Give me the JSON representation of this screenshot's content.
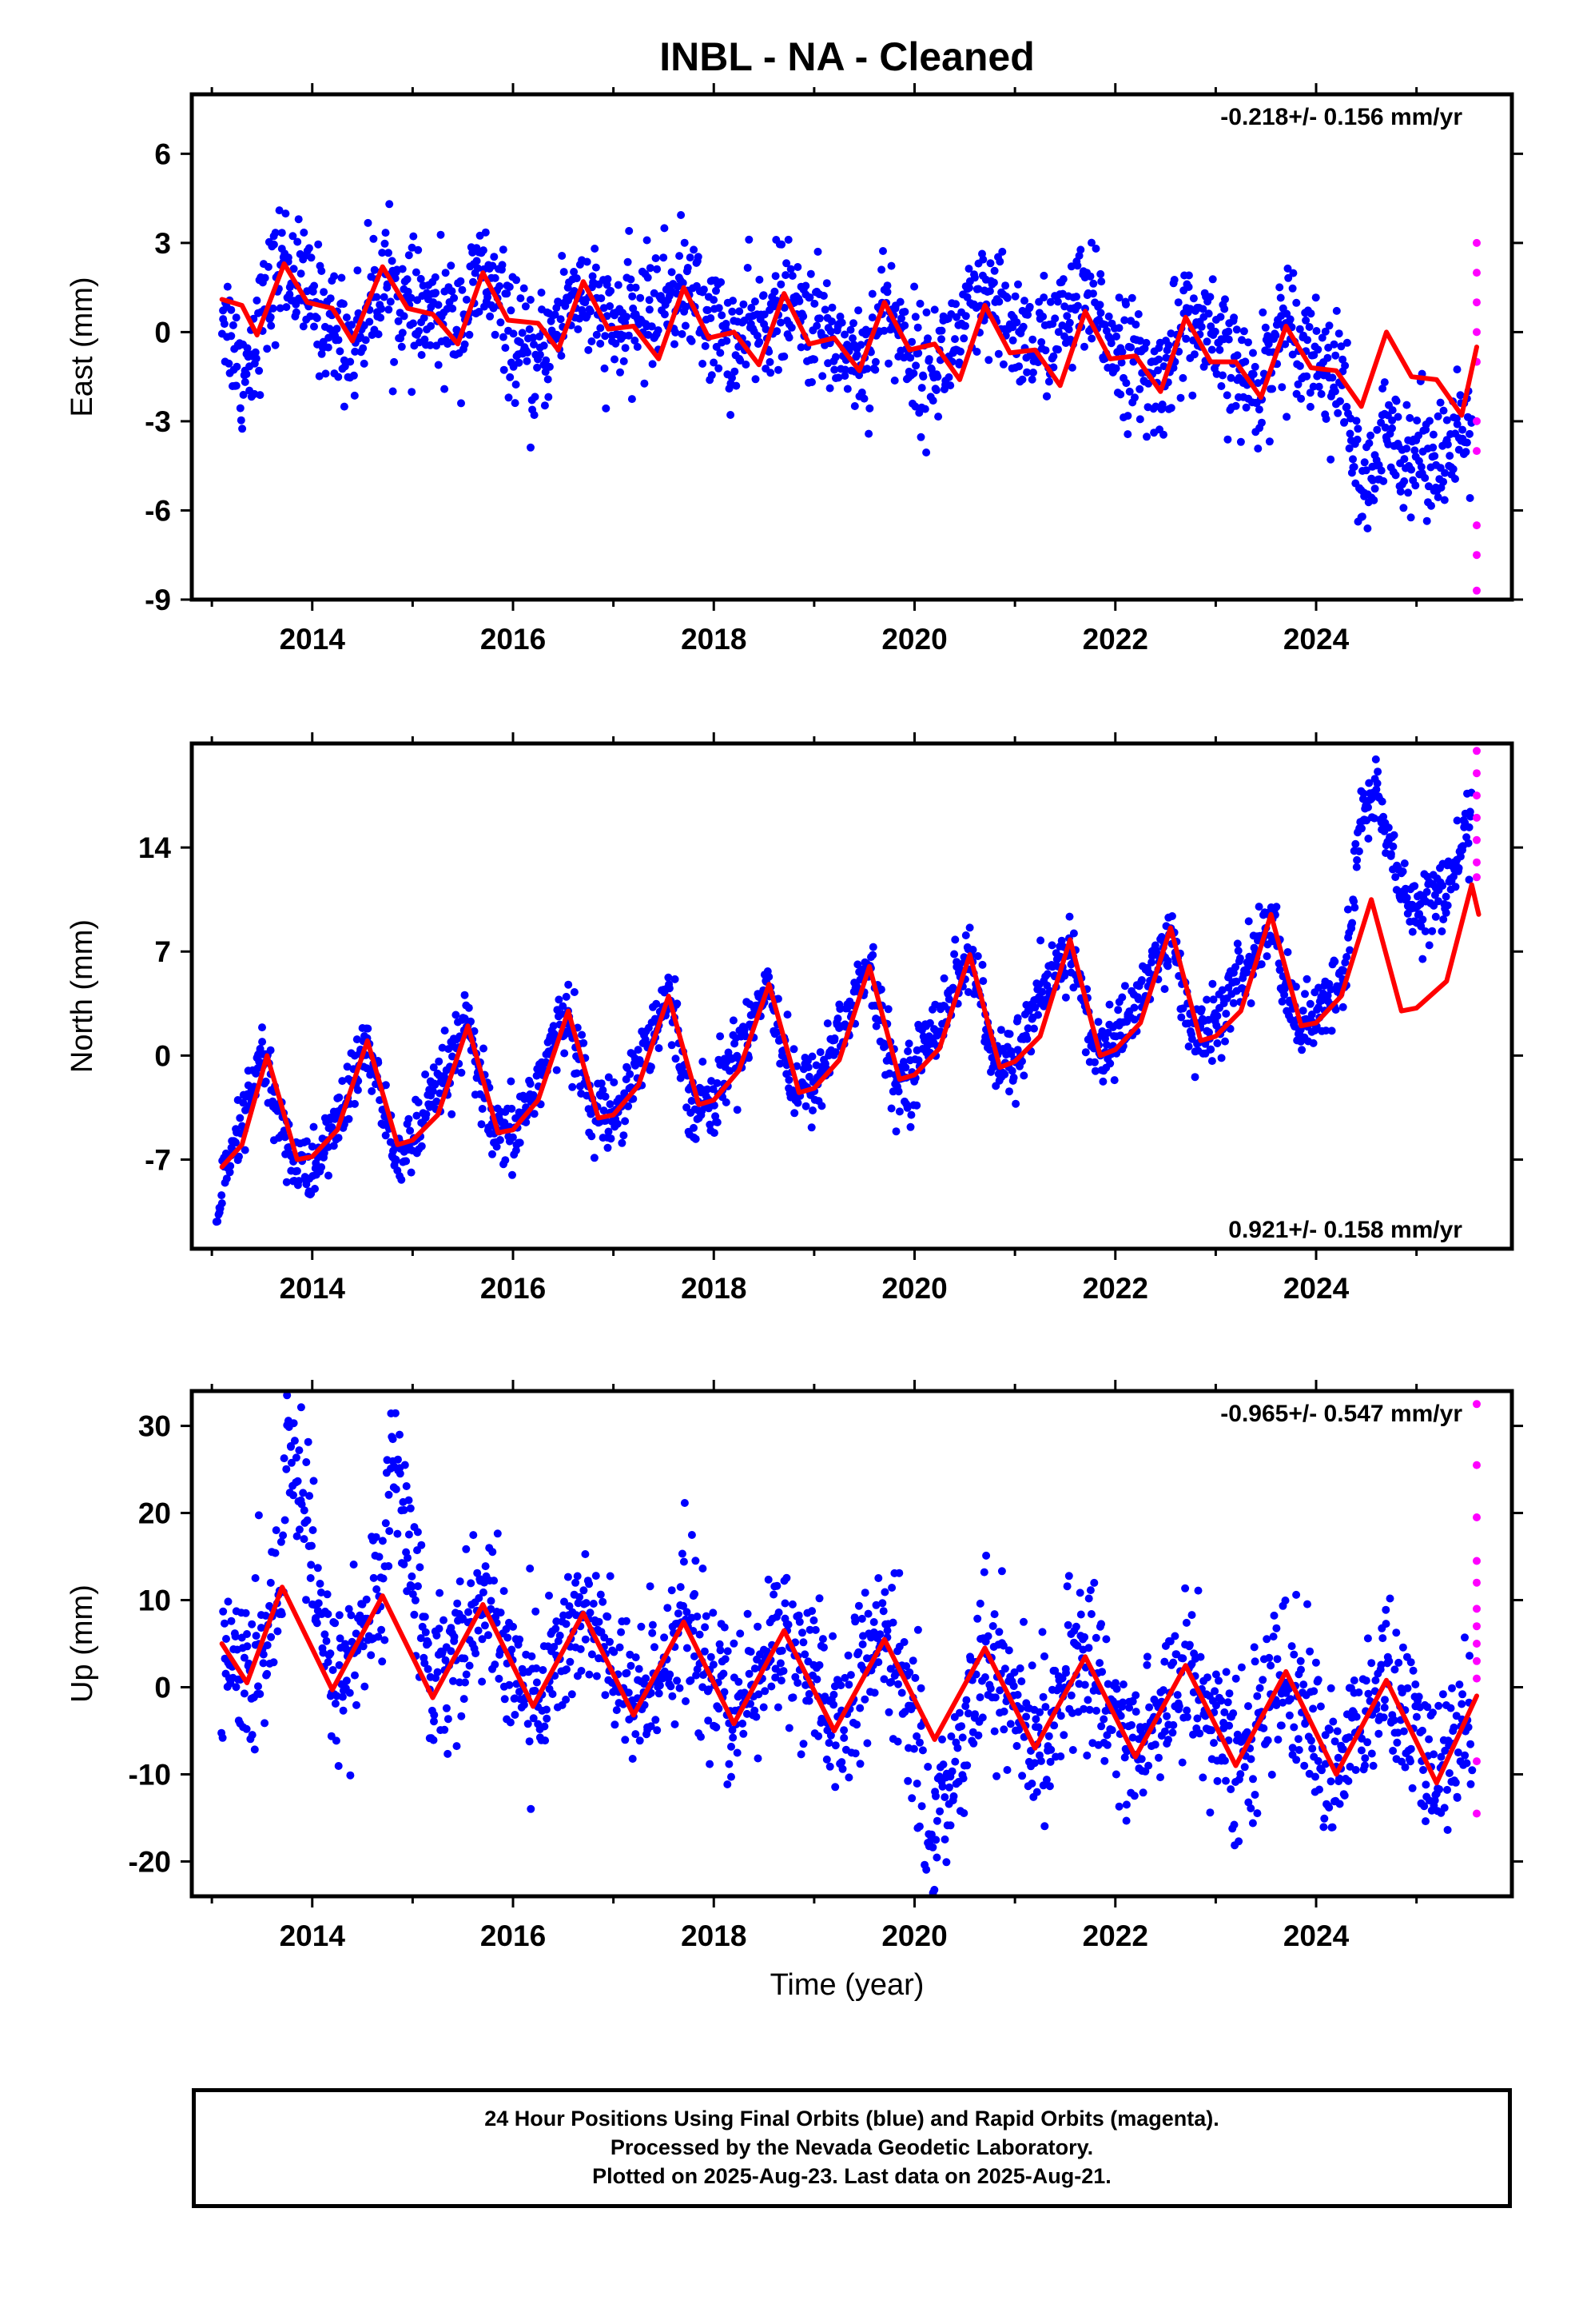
{
  "title": "INBL  - NA - Cleaned",
  "xlabel": "Time (year)",
  "footer": {
    "line1": "24 Hour Positions Using Final Orbits (blue) and Rapid Orbits (magenta).",
    "line2": "Processed by the Nevada Geodetic Laboratory.",
    "line3": "Plotted on 2025-Aug-23. Last data on 2025-Aug-21."
  },
  "colors": {
    "final_orbits": "#0000ff",
    "rapid_orbits": "#ff00ff",
    "model_fit": "#ff0000",
    "axes": "#000000"
  },
  "chart_data": [
    {
      "type": "scatter",
      "ylabel": "East (mm)",
      "velocity": "-0.218+/- 0.156 mm/yr",
      "velocity_position": "top-right",
      "xlim": [
        2012.8,
        2025.95
      ],
      "ylim": [
        -9,
        8
      ],
      "xticks": [
        2014,
        2016,
        2018,
        2020,
        2022,
        2024
      ],
      "yticks": [
        -9,
        -6,
        -3,
        0,
        3,
        6
      ],
      "series": [
        {
          "name": "Final Orbits (blue)",
          "style": "points",
          "key_points": [
            [
              2013.1,
              1.0
            ],
            [
              2013.3,
              -1.5
            ],
            [
              2013.7,
              2.5
            ],
            [
              2014.0,
              1.0
            ],
            [
              2014.4,
              -0.5
            ],
            [
              2014.7,
              2.0
            ],
            [
              2015.0,
              0.5
            ],
            [
              2015.5,
              0.5
            ],
            [
              2015.7,
              2.0
            ],
            [
              2016.2,
              -1.5
            ],
            [
              2016.6,
              1.5
            ],
            [
              2017.0,
              0.0
            ],
            [
              2017.7,
              1.5
            ],
            [
              2018.2,
              -0.5
            ],
            [
              2018.7,
              1.0
            ],
            [
              2019.5,
              -1.0
            ],
            [
              2019.7,
              1.0
            ],
            [
              2020.1,
              -1.5
            ],
            [
              2020.7,
              1.0
            ],
            [
              2021.2,
              -0.5
            ],
            [
              2021.7,
              1.0
            ],
            [
              2022.4,
              -2.0
            ],
            [
              2022.7,
              0.5
            ],
            [
              2023.4,
              -2.0
            ],
            [
              2023.7,
              0.5
            ],
            [
              2024.3,
              -2.0
            ],
            [
              2024.45,
              -6.0
            ],
            [
              2024.7,
              -3.5
            ],
            [
              2025.0,
              -4.0
            ],
            [
              2025.4,
              -4.0
            ],
            [
              2025.55,
              -3.0
            ]
          ]
        },
        {
          "name": "Rapid Orbits (magenta)",
          "style": "points",
          "key_points": [
            [
              2025.6,
              3.0
            ],
            [
              2025.6,
              2.0
            ],
            [
              2025.6,
              1.0
            ],
            [
              2025.6,
              0.0
            ],
            [
              2025.6,
              -1.0
            ],
            [
              2025.6,
              -3.0
            ],
            [
              2025.6,
              -4.0
            ],
            [
              2025.6,
              -6.5
            ],
            [
              2025.6,
              -7.5
            ],
            [
              2025.6,
              -8.7
            ]
          ]
        },
        {
          "name": "Model fit",
          "style": "line",
          "x": [
            2013.1,
            2013.3,
            2013.45,
            2013.72,
            2013.95,
            2014.2,
            2014.4,
            2014.7,
            2014.95,
            2015.2,
            2015.45,
            2015.7,
            2015.95,
            2016.25,
            2016.45,
            2016.7,
            2016.95,
            2017.2,
            2017.45,
            2017.7,
            2017.95,
            2018.2,
            2018.45,
            2018.7,
            2018.95,
            2019.2,
            2019.45,
            2019.7,
            2019.95,
            2020.2,
            2020.45,
            2020.7,
            2020.95,
            2021.2,
            2021.45,
            2021.7,
            2021.95,
            2022.2,
            2022.45,
            2022.7,
            2022.95,
            2023.2,
            2023.45,
            2023.7,
            2023.95,
            2024.2,
            2024.45,
            2024.7,
            2024.95,
            2025.2,
            2025.45,
            2025.6
          ],
          "y": [
            1.1,
            0.9,
            -0.1,
            2.3,
            1.0,
            0.8,
            -0.3,
            2.2,
            0.8,
            0.6,
            -0.4,
            2.0,
            0.4,
            0.3,
            -0.6,
            1.7,
            0.1,
            0.2,
            -0.9,
            1.5,
            -0.2,
            0.0,
            -1.1,
            1.3,
            -0.4,
            -0.2,
            -1.3,
            1.0,
            -0.6,
            -0.4,
            -1.6,
            0.9,
            -0.7,
            -0.6,
            -1.8,
            0.7,
            -0.9,
            -0.8,
            -2.0,
            0.5,
            -1.0,
            -1.0,
            -2.2,
            0.2,
            -1.2,
            -1.3,
            -2.5,
            0.0,
            -1.5,
            -1.6,
            -2.8,
            -0.5
          ]
        }
      ]
    },
    {
      "type": "scatter",
      "ylabel": "North (mm)",
      "velocity": "0.921+/- 0.158 mm/yr",
      "velocity_position": "bottom-right",
      "xlim": [
        2012.8,
        2025.95
      ],
      "ylim": [
        -13,
        21
      ],
      "xticks": [
        2014,
        2016,
        2018,
        2020,
        2022,
        2024
      ],
      "yticks": [
        -7,
        0,
        7,
        14
      ],
      "series": [
        {
          "name": "Final Orbits (blue)",
          "style": "points",
          "key_points": [
            [
              2013.05,
              -10.5
            ],
            [
              2013.2,
              -7.0
            ],
            [
              2013.5,
              0.0
            ],
            [
              2013.8,
              -7.0
            ],
            [
              2014.0,
              -8.0
            ],
            [
              2014.4,
              -2.0
            ],
            [
              2014.55,
              1.0
            ],
            [
              2014.8,
              -6.5
            ],
            [
              2015.0,
              -6.0
            ],
            [
              2015.55,
              2.0
            ],
            [
              2015.8,
              -5.5
            ],
            [
              2016.0,
              -5.5
            ],
            [
              2016.55,
              3.0
            ],
            [
              2016.8,
              -4.0
            ],
            [
              2017.0,
              -4.0
            ],
            [
              2017.55,
              4.0
            ],
            [
              2017.8,
              -3.5
            ],
            [
              2018.0,
              -3.0
            ],
            [
              2018.55,
              5.0
            ],
            [
              2018.8,
              -2.5
            ],
            [
              2019.0,
              -2.0
            ],
            [
              2019.55,
              6.0
            ],
            [
              2019.8,
              -2.0
            ],
            [
              2020.0,
              -1.0
            ],
            [
              2020.55,
              7.0
            ],
            [
              2020.8,
              -1.0
            ],
            [
              2021.0,
              0.0
            ],
            [
              2021.55,
              7.5
            ],
            [
              2021.8,
              0.0
            ],
            [
              2022.0,
              1.0
            ],
            [
              2022.55,
              8.0
            ],
            [
              2022.8,
              1.0
            ],
            [
              2023.0,
              2.0
            ],
            [
              2023.55,
              9.0
            ],
            [
              2023.8,
              2.0
            ],
            [
              2024.1,
              3.0
            ],
            [
              2024.3,
              6.0
            ],
            [
              2024.45,
              16.0
            ],
            [
              2024.6,
              18.0
            ],
            [
              2024.8,
              12.0
            ],
            [
              2025.0,
              10.0
            ],
            [
              2025.3,
              11.0
            ],
            [
              2025.55,
              16.0
            ]
          ]
        },
        {
          "name": "Rapid Orbits (magenta)",
          "style": "points",
          "key_points": [
            [
              2025.6,
              20.5
            ],
            [
              2025.6,
              19.0
            ],
            [
              2025.6,
              17.5
            ],
            [
              2025.6,
              16.0
            ],
            [
              2025.6,
              14.5
            ],
            [
              2025.6,
              13.0
            ],
            [
              2025.6,
              12.0
            ]
          ]
        },
        {
          "name": "Model fit",
          "style": "line",
          "x": [
            2013.1,
            2013.3,
            2013.55,
            2013.85,
            2014.0,
            2014.25,
            2014.55,
            2014.85,
            2015.0,
            2015.25,
            2015.55,
            2015.85,
            2016.0,
            2016.25,
            2016.55,
            2016.85,
            2017.0,
            2017.25,
            2017.55,
            2017.85,
            2018.0,
            2018.25,
            2018.55,
            2018.85,
            2019.0,
            2019.25,
            2019.55,
            2019.85,
            2020.0,
            2020.25,
            2020.55,
            2020.85,
            2021.0,
            2021.25,
            2021.55,
            2021.85,
            2022.0,
            2022.25,
            2022.55,
            2022.85,
            2023.0,
            2023.25,
            2023.55,
            2023.85,
            2024.0,
            2024.25,
            2024.55,
            2024.85,
            2025.0,
            2025.3,
            2025.55,
            2025.62
          ],
          "y": [
            -7.5,
            -6.0,
            0.0,
            -7.0,
            -6.8,
            -5.0,
            1.0,
            -6.0,
            -5.7,
            -4.0,
            2.0,
            -5.2,
            -5.0,
            -3.0,
            3.0,
            -4.2,
            -4.0,
            -2.0,
            4.0,
            -3.3,
            -3.0,
            -1.0,
            4.8,
            -2.5,
            -2.2,
            -0.3,
            6.0,
            -1.6,
            -1.3,
            0.5,
            6.8,
            -0.8,
            -0.4,
            1.3,
            7.8,
            0.0,
            0.4,
            2.2,
            8.6,
            1.0,
            1.3,
            3.0,
            9.5,
            2.0,
            2.2,
            4.0,
            10.5,
            3.0,
            3.2,
            5.0,
            11.5,
            9.5
          ]
        }
      ]
    },
    {
      "type": "scatter",
      "ylabel": "Up (mm)",
      "velocity": "-0.965+/- 0.547 mm/yr",
      "velocity_position": "top-right",
      "xlim": [
        2012.8,
        2025.95
      ],
      "ylim": [
        -24,
        34
      ],
      "xticks": [
        2014,
        2016,
        2018,
        2020,
        2022,
        2024
      ],
      "yticks": [
        -20,
        -10,
        0,
        10,
        20,
        30
      ],
      "series": [
        {
          "name": "Final Orbits (blue)",
          "style": "points",
          "key_points": [
            [
              2013.1,
              5.0
            ],
            [
              2013.4,
              0.0
            ],
            [
              2013.7,
              12.0
            ],
            [
              2013.75,
              31.0
            ],
            [
              2014.2,
              0.0
            ],
            [
              2014.7,
              11.0
            ],
            [
              2014.8,
              28.0
            ],
            [
              2015.2,
              0.0
            ],
            [
              2015.7,
              10.0
            ],
            [
              2016.2,
              -2.0
            ],
            [
              2016.7,
              9.0
            ],
            [
              2017.2,
              -3.0
            ],
            [
              2017.7,
              8.0
            ],
            [
              2018.2,
              -4.0
            ],
            [
              2018.7,
              7.0
            ],
            [
              2019.2,
              -5.0
            ],
            [
              2019.7,
              6.0
            ],
            [
              2020.1,
              -6.0
            ],
            [
              2020.1,
              -22.0
            ],
            [
              2020.7,
              5.0
            ],
            [
              2021.2,
              -7.0
            ],
            [
              2021.7,
              4.0
            ],
            [
              2022.2,
              -8.0
            ],
            [
              2022.7,
              3.0
            ],
            [
              2023.2,
              -9.0
            ],
            [
              2023.7,
              2.0
            ],
            [
              2024.2,
              -10.0
            ],
            [
              2024.7,
              1.0
            ],
            [
              2025.2,
              -11.0
            ],
            [
              2025.55,
              -2.0
            ]
          ]
        },
        {
          "name": "Rapid Orbits (magenta)",
          "style": "points",
          "key_points": [
            [
              2025.6,
              32.5
            ],
            [
              2025.6,
              25.5
            ],
            [
              2025.6,
              19.5
            ],
            [
              2025.6,
              14.5
            ],
            [
              2025.6,
              12.0
            ],
            [
              2025.6,
              9.0
            ],
            [
              2025.6,
              7.0
            ],
            [
              2025.6,
              5.0
            ],
            [
              2025.6,
              3.0
            ],
            [
              2025.6,
              1.0
            ],
            [
              2025.6,
              -8.5
            ],
            [
              2025.6,
              -14.5
            ]
          ]
        },
        {
          "name": "Model fit",
          "style": "line",
          "x": [
            2013.1,
            2013.35,
            2013.7,
            2014.2,
            2014.7,
            2015.2,
            2015.7,
            2016.2,
            2016.7,
            2017.2,
            2017.7,
            2018.2,
            2018.7,
            2019.2,
            2019.7,
            2020.2,
            2020.7,
            2021.2,
            2021.7,
            2022.2,
            2022.7,
            2023.2,
            2023.7,
            2024.2,
            2024.7,
            2025.2,
            2025.6
          ],
          "y": [
            5.0,
            0.5,
            11.5,
            -0.3,
            10.5,
            -1.2,
            9.5,
            -2.2,
            8.5,
            -3.2,
            7.5,
            -4.2,
            6.5,
            -5.0,
            5.5,
            -6.0,
            4.5,
            -7.0,
            3.5,
            -8.0,
            2.5,
            -9.0,
            1.8,
            -10.0,
            0.8,
            -11.0,
            -1.0
          ]
        }
      ]
    }
  ]
}
